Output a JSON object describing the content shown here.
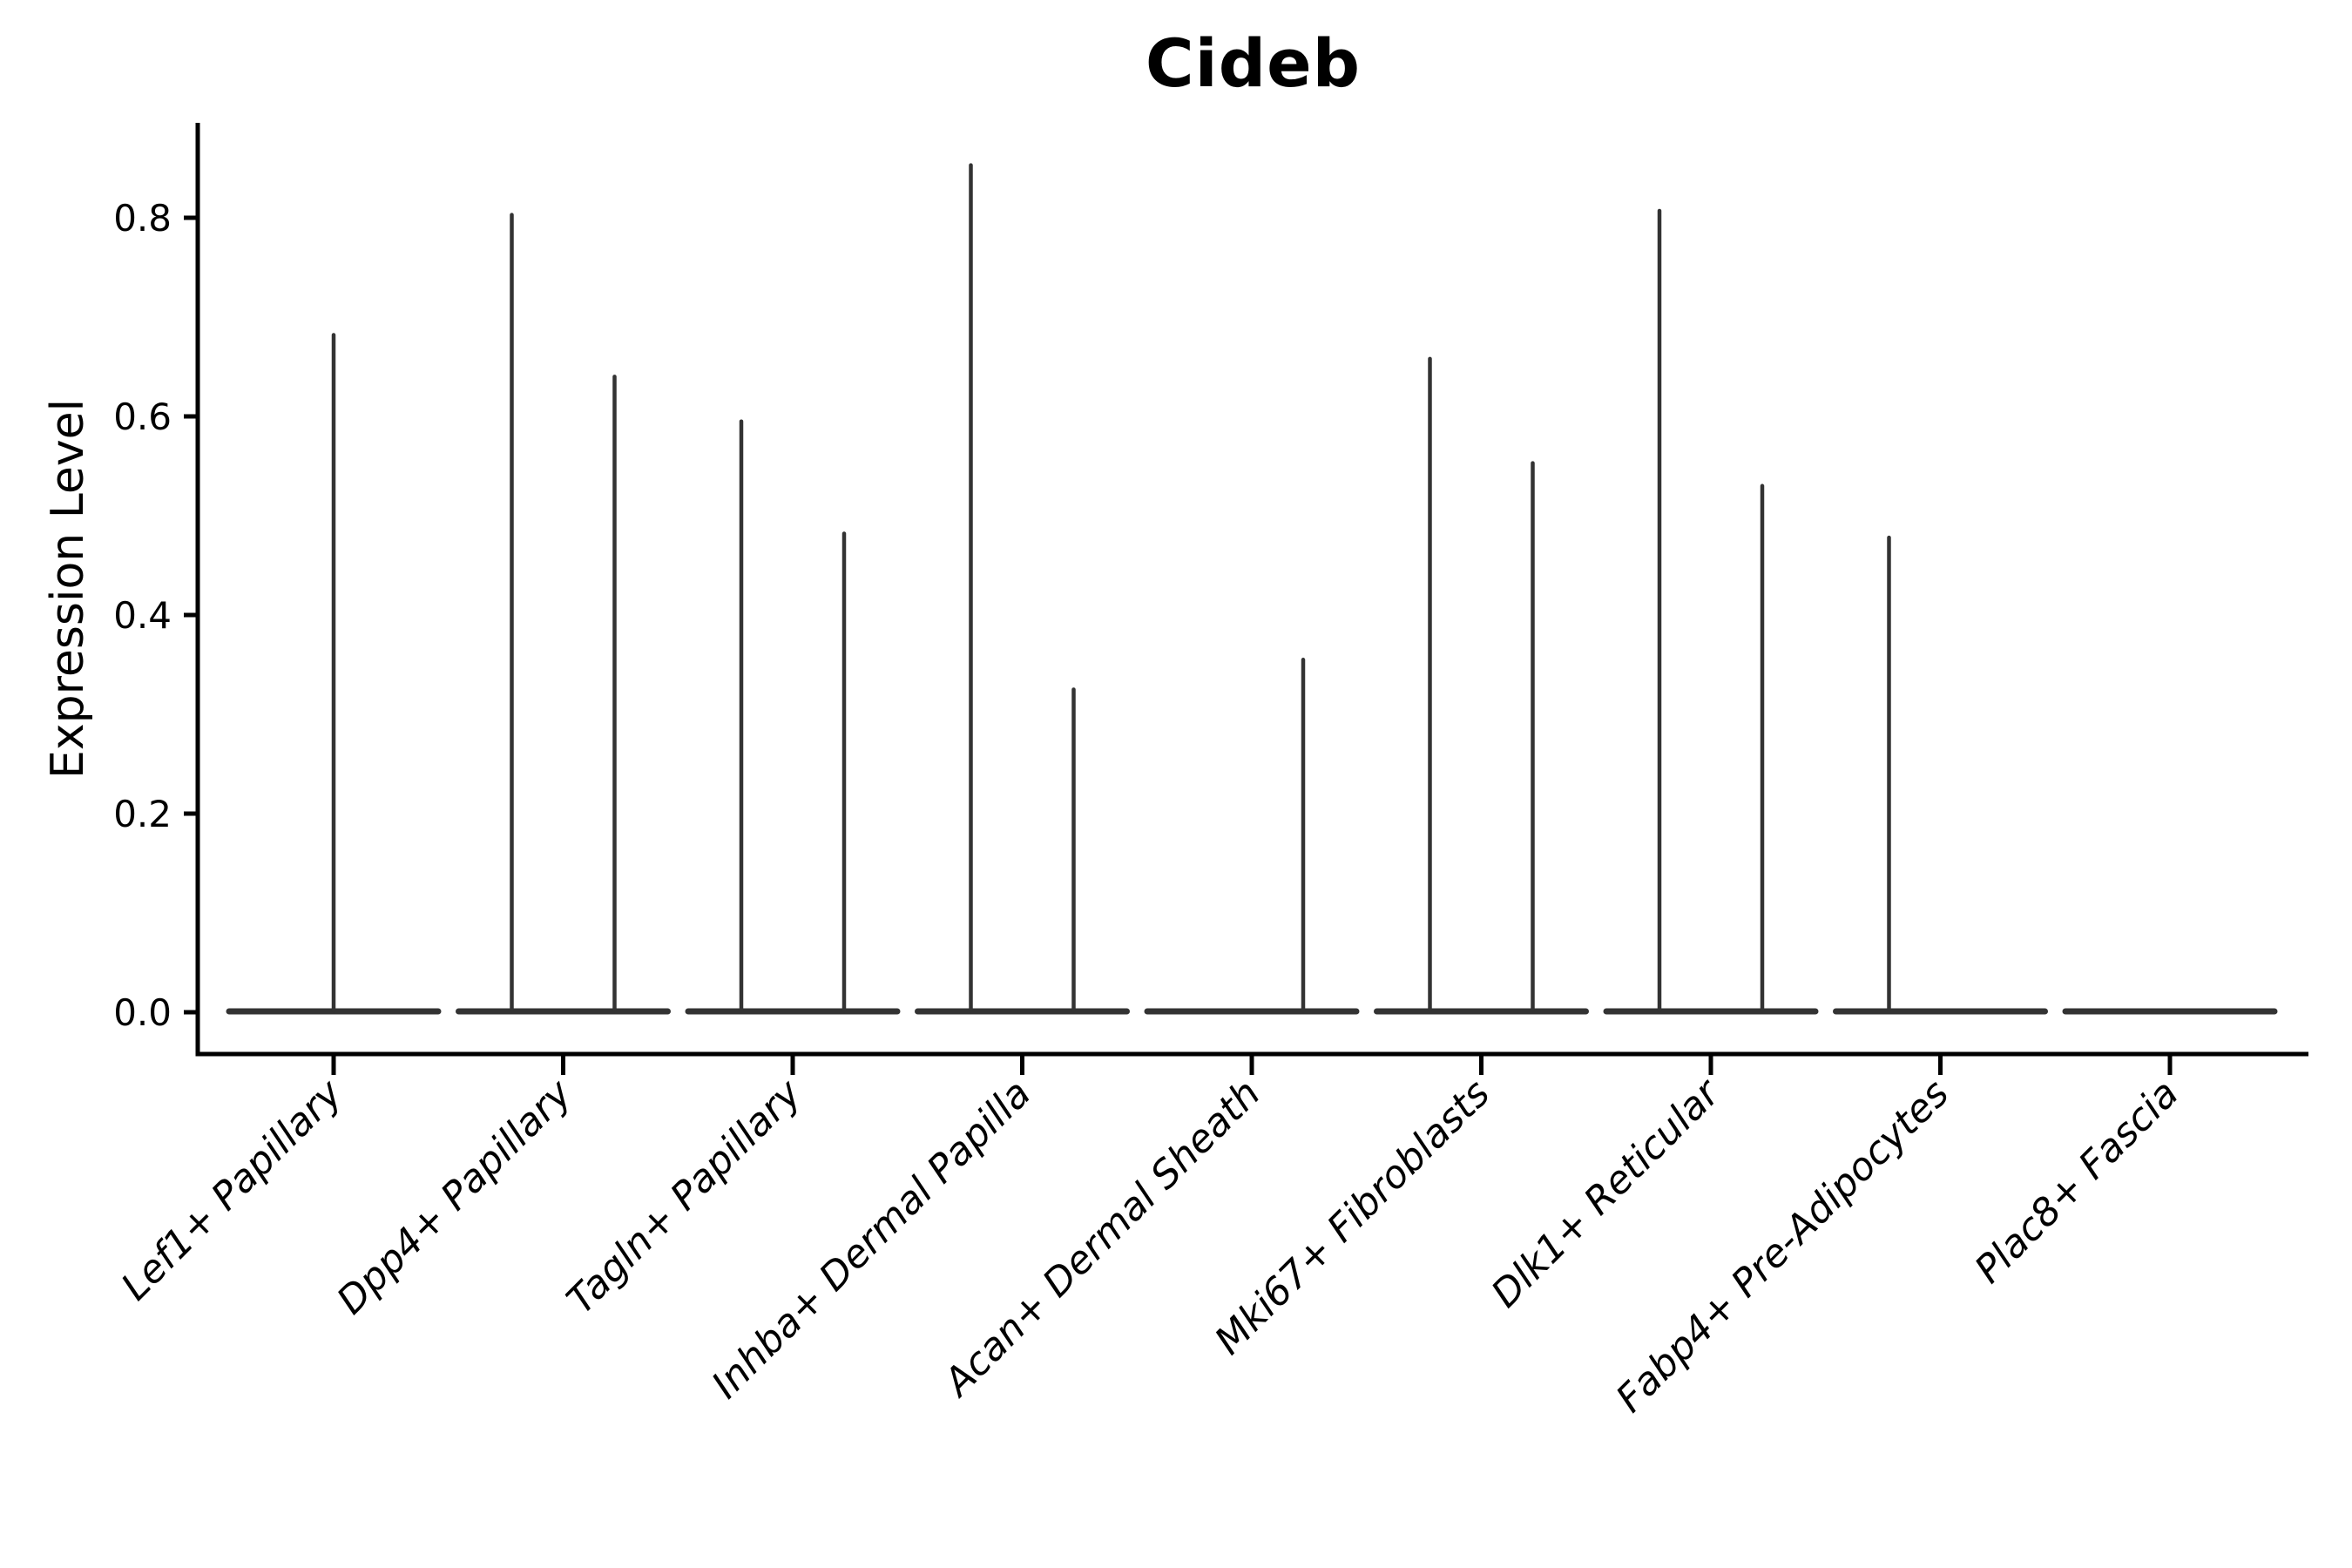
{
  "title": "Cideb",
  "y_axis": {
    "label": "Expression Level",
    "tick_labels": [
      "0.0",
      "0.2",
      "0.4",
      "0.6",
      "0.8"
    ],
    "tick_values": [
      0.0,
      0.2,
      0.4,
      0.6,
      0.8
    ]
  },
  "chart_data": {
    "type": "violin",
    "title": "Cideb",
    "xlabel": "",
    "ylabel": "Expression Level",
    "ylim": [
      -0.04,
      0.9
    ],
    "grid": false,
    "legend": "none",
    "categories": [
      "Lef1+ Papillary",
      "Dpp4+ Papillary",
      "Tagln+ Papillary",
      "Inhba+ Dermal Papilla",
      "Acan+ Dermal Sheath",
      "Mki67+ Fibroblasts",
      "Dlk1+ Reticular",
      "Fabp4+ Pre-Adipocytes",
      "Plac8+ Fascia"
    ],
    "violins": [
      {
        "category": "Lef1+ Papillary",
        "needles": [
          {
            "side": "center",
            "max": 0.682
          }
        ]
      },
      {
        "category": "Dpp4+ Papillary",
        "needles": [
          {
            "side": "left",
            "max": 0.803
          },
          {
            "side": "right",
            "max": 0.64
          }
        ]
      },
      {
        "category": "Tagln+ Papillary",
        "needles": [
          {
            "side": "left",
            "max": 0.595
          },
          {
            "side": "right",
            "max": 0.482
          }
        ]
      },
      {
        "category": "Inhba+ Dermal Papilla",
        "needles": [
          {
            "side": "left",
            "max": 0.853
          },
          {
            "side": "right",
            "max": 0.325
          }
        ]
      },
      {
        "category": "Acan+ Dermal Sheath",
        "needles": [
          {
            "side": "right",
            "max": 0.355
          }
        ]
      },
      {
        "category": "Mki67+ Fibroblasts",
        "needles": [
          {
            "side": "left",
            "max": 0.658
          },
          {
            "side": "right",
            "max": 0.553
          }
        ]
      },
      {
        "category": "Dlk1+ Reticular",
        "needles": [
          {
            "side": "left",
            "max": 0.807
          },
          {
            "side": "right",
            "max": 0.53
          }
        ]
      },
      {
        "category": "Fabp4+ Pre-Adipocytes",
        "needles": [
          {
            "side": "left",
            "max": 0.478
          }
        ]
      },
      {
        "category": "Plac8+ Fascia",
        "needles": []
      }
    ],
    "baseline_value": 0.0,
    "colors": {
      "violin": "#333333",
      "axis": "#000000",
      "text": "#000000",
      "background": "#ffffff"
    }
  }
}
